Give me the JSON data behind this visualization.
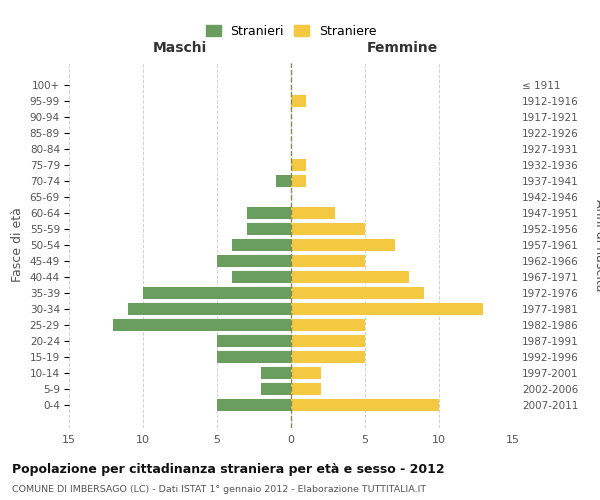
{
  "age_groups": [
    "100+",
    "95-99",
    "90-94",
    "85-89",
    "80-84",
    "75-79",
    "70-74",
    "65-69",
    "60-64",
    "55-59",
    "50-54",
    "45-49",
    "40-44",
    "35-39",
    "30-34",
    "25-29",
    "20-24",
    "15-19",
    "10-14",
    "5-9",
    "0-4"
  ],
  "birth_years": [
    "≤ 1911",
    "1912-1916",
    "1917-1921",
    "1922-1926",
    "1927-1931",
    "1932-1936",
    "1937-1941",
    "1942-1946",
    "1947-1951",
    "1952-1956",
    "1957-1961",
    "1962-1966",
    "1967-1971",
    "1972-1976",
    "1977-1981",
    "1982-1986",
    "1987-1991",
    "1992-1996",
    "1997-2001",
    "2002-2006",
    "2007-2011"
  ],
  "males": [
    0,
    0,
    0,
    0,
    0,
    0,
    1,
    0,
    3,
    3,
    4,
    5,
    4,
    10,
    11,
    12,
    5,
    5,
    2,
    2,
    5
  ],
  "females": [
    0,
    1,
    0,
    0,
    0,
    1,
    1,
    0,
    3,
    5,
    7,
    5,
    8,
    9,
    13,
    5,
    5,
    5,
    2,
    2,
    10
  ],
  "male_color": "#6a9e5e",
  "female_color": "#f5c842",
  "title": "Popolazione per cittadinanza straniera per età e sesso - 2012",
  "subtitle": "COMUNE DI IMBERSAGO (LC) - Dati ISTAT 1° gennaio 2012 - Elaborazione TUTTITALIA.IT",
  "ylabel_left": "Fasce di età",
  "ylabel_right": "Anni di nascita",
  "header_left": "Maschi",
  "header_right": "Femmine",
  "legend_male": "Stranieri",
  "legend_female": "Straniere",
  "xlim": 15,
  "background_color": "#ffffff",
  "grid_color": "#cccccc",
  "bar_height": 0.75
}
